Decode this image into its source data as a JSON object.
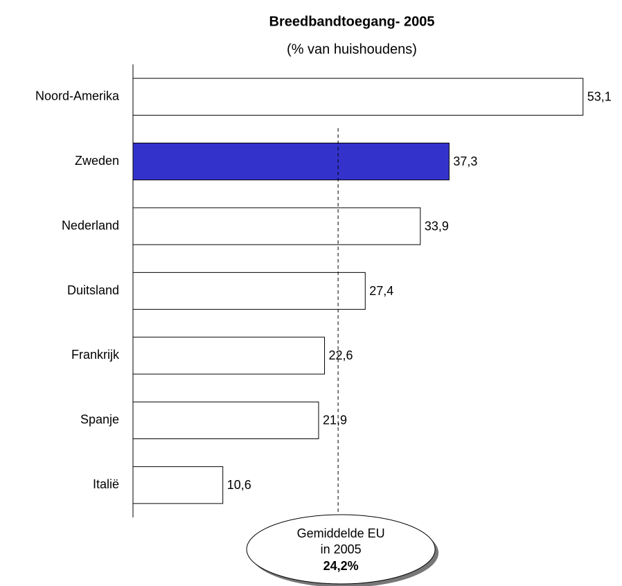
{
  "chart_data": {
    "type": "bar",
    "orientation": "horizontal",
    "title": "Breedbandtoegang- 2005",
    "subtitle": "(% van huishoudens)",
    "categories": [
      "Noord-Amerika",
      "Zweden",
      "Nederland",
      "Duitsland",
      "Frankrijk",
      "Spanje",
      "Italië"
    ],
    "values": [
      53.1,
      37.3,
      33.9,
      27.4,
      22.6,
      21.9,
      10.6
    ],
    "value_labels": [
      "53,1",
      "37,3",
      "33,9",
      "27,4",
      "22,6",
      "21,9",
      "10,6"
    ],
    "colors": [
      "#ffffff",
      "#3333cc",
      "#ffffff",
      "#ffffff",
      "#ffffff",
      "#ffffff",
      "#ffffff"
    ],
    "xlim": [
      0,
      55
    ],
    "reference_line": {
      "value": 24.2,
      "value_label": "24,2%",
      "label": [
        "Gemiddelde EU",
        "in 2005"
      ]
    }
  }
}
